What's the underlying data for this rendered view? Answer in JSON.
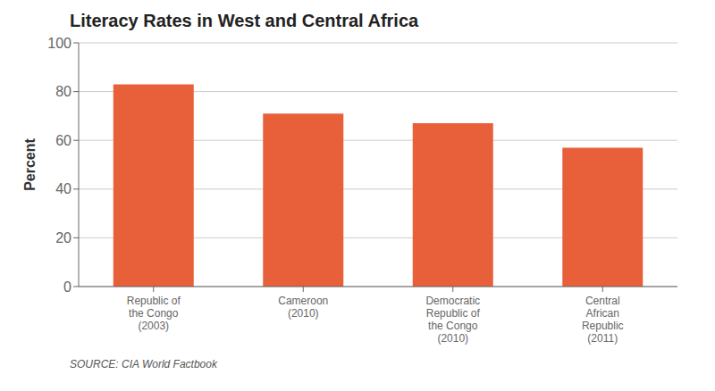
{
  "chart_data": {
    "type": "bar",
    "title": "Literacy Rates in West and Central Africa",
    "categories": [
      "Republic of\nthe Congo\n(2003)",
      "Cameroon\n(2010)",
      "Democratic\nRepublic of\nthe Congo\n(2010)",
      "Central\nAfrican\nRepublic\n(2011)"
    ],
    "values": [
      83,
      71,
      67,
      57
    ],
    "color": "#E8603A",
    "ylabel": "Percent",
    "ylim": [
      0,
      100
    ],
    "yticks": [
      0,
      20,
      40,
      60,
      80,
      100
    ],
    "grid": true,
    "annotations": [
      "SOURCE: CIA World Factbook"
    ]
  }
}
